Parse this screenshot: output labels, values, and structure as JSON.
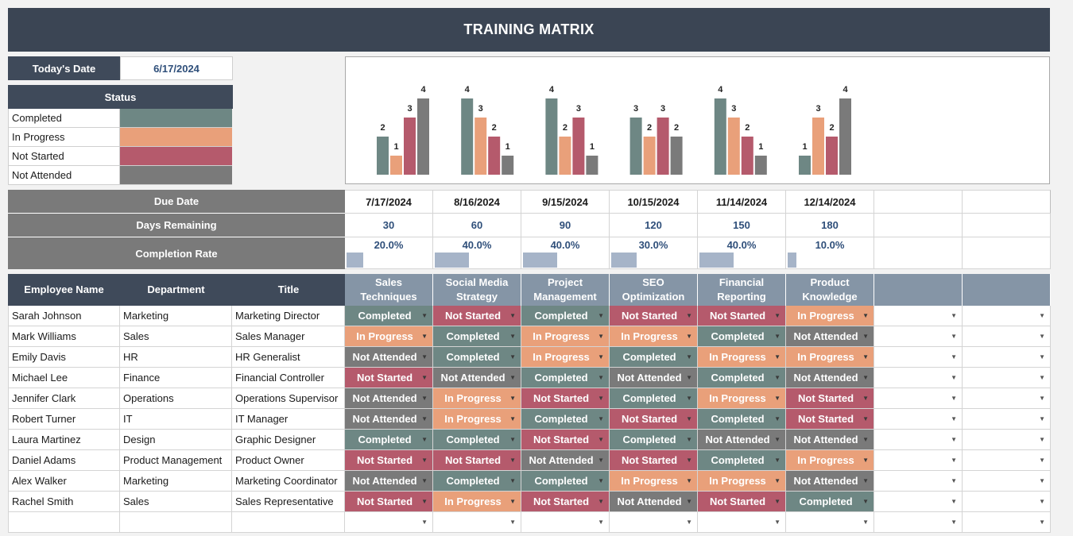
{
  "title": "TRAINING MATRIX",
  "today": {
    "label": "Today's Date",
    "value": "6/17/2024"
  },
  "status_legend": {
    "header": "Status",
    "items": [
      {
        "label": "Completed",
        "color": "#6e8784"
      },
      {
        "label": "In Progress",
        "color": "#e9a07a"
      },
      {
        "label": "Not Started",
        "color": "#b55a6c"
      },
      {
        "label": "Not Attended",
        "color": "#7a7a7a"
      }
    ]
  },
  "summary": {
    "due_label": "Due Date",
    "days_label": "Days Remaining",
    "rate_label": "Completion Rate",
    "columns": [
      {
        "due": "7/17/2024",
        "days": "30",
        "rate": "20.0%",
        "rate_value": 0.2
      },
      {
        "due": "8/16/2024",
        "days": "60",
        "rate": "40.0%",
        "rate_value": 0.4
      },
      {
        "due": "9/15/2024",
        "days": "90",
        "rate": "40.0%",
        "rate_value": 0.4
      },
      {
        "due": "10/15/2024",
        "days": "120",
        "rate": "30.0%",
        "rate_value": 0.3
      },
      {
        "due": "11/14/2024",
        "days": "150",
        "rate": "40.0%",
        "rate_value": 0.4
      },
      {
        "due": "12/14/2024",
        "days": "180",
        "rate": "10.0%",
        "rate_value": 0.1
      }
    ]
  },
  "chart_data": {
    "type": "bar",
    "categories": [
      "Sales Techniques",
      "Social Media Strategy",
      "Project Management",
      "SEO Optimization",
      "Financial Reporting",
      "Product Knowledge"
    ],
    "series": [
      {
        "name": "Completed",
        "color": "#6e8784",
        "values": [
          2,
          4,
          4,
          3,
          4,
          1
        ]
      },
      {
        "name": "In Progress",
        "color": "#e9a07a",
        "values": [
          1,
          3,
          2,
          2,
          3,
          3
        ]
      },
      {
        "name": "Not Started",
        "color": "#b55a6c",
        "values": [
          3,
          2,
          3,
          3,
          2,
          2
        ]
      },
      {
        "name": "Not Attended",
        "color": "#7a7a7a",
        "values": [
          4,
          1,
          1,
          2,
          1,
          4
        ]
      }
    ],
    "ylim": [
      0,
      4
    ],
    "grid": false
  },
  "headers": {
    "employee": "Employee Name",
    "department": "Department",
    "title": "Title",
    "courses": [
      "Sales Techniques",
      "Social Media Strategy",
      "Project Management",
      "SEO Optimization",
      "Financial Reporting",
      "Product Knowledge"
    ]
  },
  "employees": [
    {
      "name": "Sarah Johnson",
      "department": "Marketing",
      "title": "Marketing Director",
      "statuses": [
        "Completed",
        "Not Started",
        "Completed",
        "Not Started",
        "Not Started",
        "In Progress"
      ]
    },
    {
      "name": "Mark Williams",
      "department": "Sales",
      "title": "Sales Manager",
      "statuses": [
        "In Progress",
        "Completed",
        "In Progress",
        "In Progress",
        "Completed",
        "Not Attended"
      ]
    },
    {
      "name": "Emily Davis",
      "department": "HR",
      "title": "HR Generalist",
      "statuses": [
        "Not Attended",
        "Completed",
        "In Progress",
        "Completed",
        "In Progress",
        "In Progress"
      ]
    },
    {
      "name": "Michael Lee",
      "department": "Finance",
      "title": "Financial Controller",
      "statuses": [
        "Not Started",
        "Not Attended",
        "Completed",
        "Not Attended",
        "Completed",
        "Not Attended"
      ]
    },
    {
      "name": "Jennifer Clark",
      "department": "Operations",
      "title": "Operations Supervisor",
      "statuses": [
        "Not Attended",
        "In Progress",
        "Not Started",
        "Completed",
        "In Progress",
        "Not Started"
      ]
    },
    {
      "name": "Robert Turner",
      "department": "IT",
      "title": "IT Manager",
      "statuses": [
        "Not Attended",
        "In Progress",
        "Completed",
        "Not Started",
        "Completed",
        "Not Started"
      ]
    },
    {
      "name": "Laura Martinez",
      "department": "Design",
      "title": "Graphic Designer",
      "statuses": [
        "Completed",
        "Completed",
        "Not Started",
        "Completed",
        "Not Attended",
        "Not Attended"
      ]
    },
    {
      "name": "Daniel Adams",
      "department": "Product Management",
      "title": "Product Owner",
      "statuses": [
        "Not Started",
        "Not Started",
        "Not Attended",
        "Not Started",
        "Completed",
        "In Progress"
      ]
    },
    {
      "name": "Alex Walker",
      "department": "Marketing",
      "title": "Marketing Coordinator",
      "statuses": [
        "Not Attended",
        "Completed",
        "Completed",
        "In Progress",
        "In Progress",
        "Not Attended"
      ]
    },
    {
      "name": "Rachel Smith",
      "department": "Sales",
      "title": "Sales Representative",
      "statuses": [
        "Not Started",
        "In Progress",
        "Not Started",
        "Not Attended",
        "Not Started",
        "Completed"
      ]
    }
  ],
  "status_colors": {
    "Completed": "#6e8784",
    "In Progress": "#e9a07a",
    "Not Started": "#b55a6c",
    "Not Attended": "#7a7a7a"
  },
  "icons": {
    "dropdown": "caret-down-icon"
  }
}
